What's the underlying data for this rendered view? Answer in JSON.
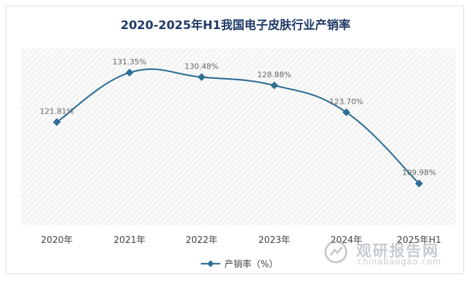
{
  "title": "2020-2025年H1我国电子皮肤行业产销率",
  "chart_data": {
    "type": "line",
    "title": "2020-2025年H1我国电子皮肤行业产销率",
    "categories": [
      "2020年",
      "2021年",
      "2022年",
      "2023年",
      "2024年",
      "2025年H1"
    ],
    "series": [
      {
        "name": "产销率（%）",
        "values": [
          121.81,
          131.35,
          130.48,
          128.88,
          123.7,
          109.98
        ],
        "labels": [
          "121.81%",
          "131.35%",
          "130.48%",
          "128.88%",
          "123.70%",
          "109.98%"
        ],
        "color": "#2e6f95"
      }
    ],
    "ylim": [
      102,
      136
    ],
    "grid": false,
    "legend": "bottom"
  },
  "watermark": {
    "name_cn": "观研报告网",
    "url": "chinabaogao.com"
  }
}
